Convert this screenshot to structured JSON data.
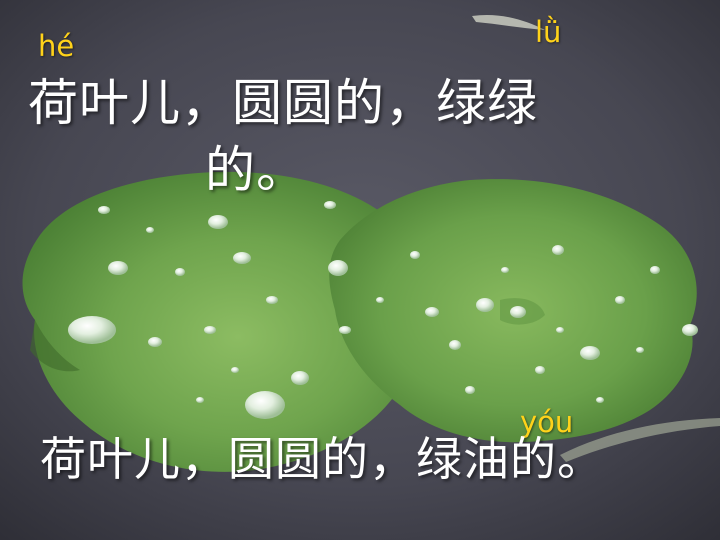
{
  "slide": {
    "pinyin_he": "hé",
    "pinyin_lu": "lǜ",
    "pinyin_you": "yóu",
    "line1": "荷叶儿，圆圆的，绿绿",
    "line2": "的。",
    "line3": "荷叶儿，圆圆的，绿油的。"
  },
  "colors": {
    "pinyin": "#ffd21a",
    "text": "#ffffff",
    "water": "#45454f",
    "leaf": "#6fa44d"
  }
}
